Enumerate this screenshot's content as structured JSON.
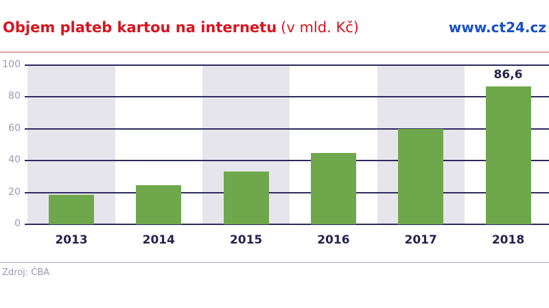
{
  "header": {
    "title": "Objem plateb kartou na internetu",
    "unit": "(v mld. Kč)",
    "brand": "www.ct24.cz"
  },
  "footer": {
    "source": "Zdroj: ČBA"
  },
  "colors": {
    "title": "#d9141f",
    "brand": "#1a4fc4",
    "bar": "#6fa84c",
    "band": "#e7e5ec",
    "grid": "#2d2b5e"
  },
  "chart_data": {
    "type": "bar",
    "title": "Objem plateb kartou na internetu (v mld. Kč)",
    "xlabel": "",
    "ylabel": "mld. Kč",
    "categories": [
      "2013",
      "2014",
      "2015",
      "2016",
      "2017",
      "2018"
    ],
    "values": [
      18.5,
      24.5,
      33,
      45,
      60,
      86.6
    ],
    "value_notes": "Only 86,6 (2018) is a data label in the chart; 2013-2017 are estimates read from bar heights against gridlines (rounded to 0.5). Pixel measurement gives about 88 for 2018 versus the labeled 86.6, so the estimated bars may run slightly high.",
    "data_labels": [
      null,
      null,
      null,
      null,
      null,
      "86,6"
    ],
    "yticks": [
      "0",
      "20",
      "40",
      "60",
      "80",
      "100"
    ],
    "ylim": [
      0,
      100
    ],
    "grid": true,
    "alternating_bands": true,
    "legend": null
  }
}
